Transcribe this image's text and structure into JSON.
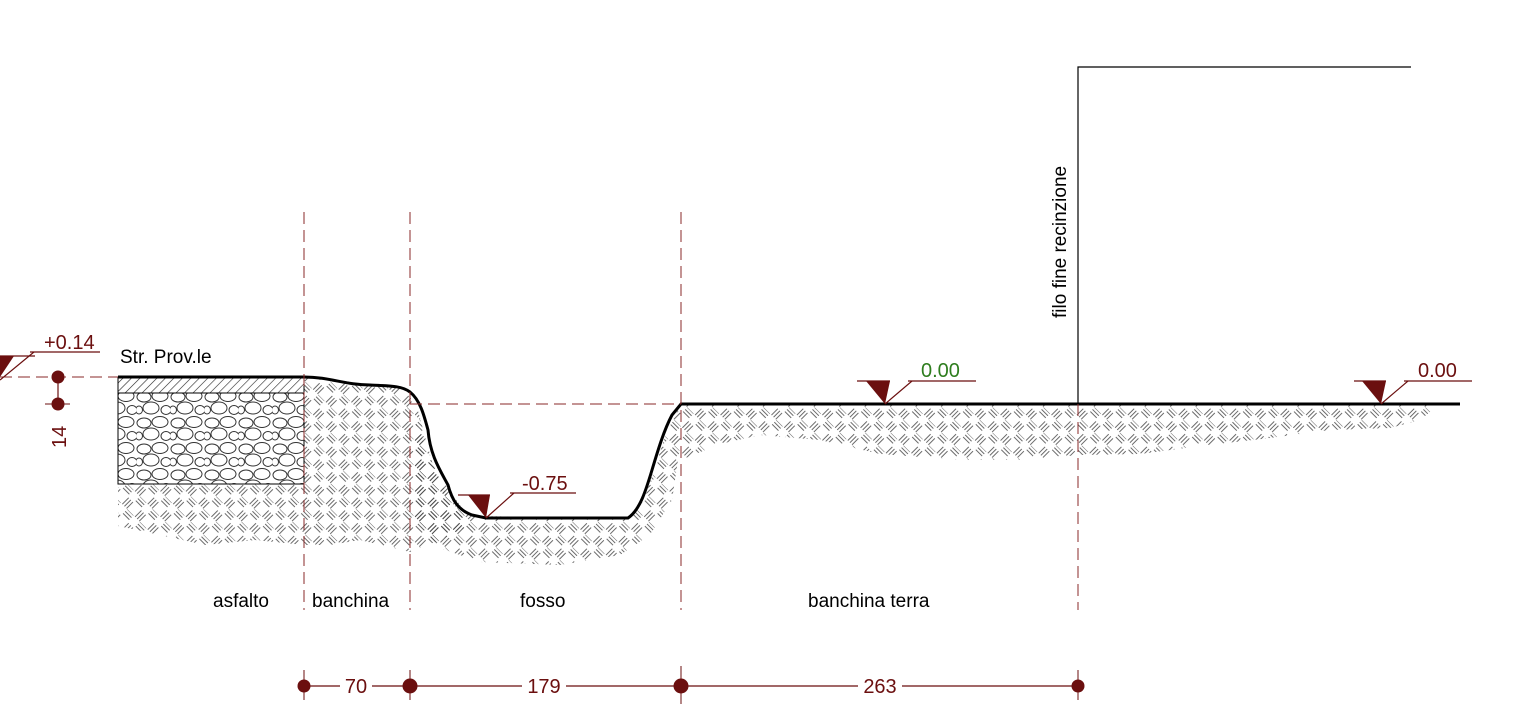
{
  "colors": {
    "ink": "#000000",
    "dim": "#6b0f0f",
    "elev_ok": "#2e7d1e",
    "hatch": "#333333",
    "guide": "#8a2a2a"
  },
  "labels": {
    "road_name": "Str. Prov.le",
    "fence_line": "filo fine recinzione",
    "zone_asfalto": "asfalto",
    "zone_banchina": "banchina",
    "zone_fosso": "fosso",
    "zone_banchina_terra": "banchina terra"
  },
  "elevations": {
    "road": "+0.14",
    "ditch_bottom": "-0.75",
    "ground_1": "0.00",
    "ground_2": "0.00"
  },
  "dimensions": {
    "road_rise": "14",
    "banchina_width": "70",
    "fosso_width": "179",
    "banchina_terra_width": "263"
  }
}
